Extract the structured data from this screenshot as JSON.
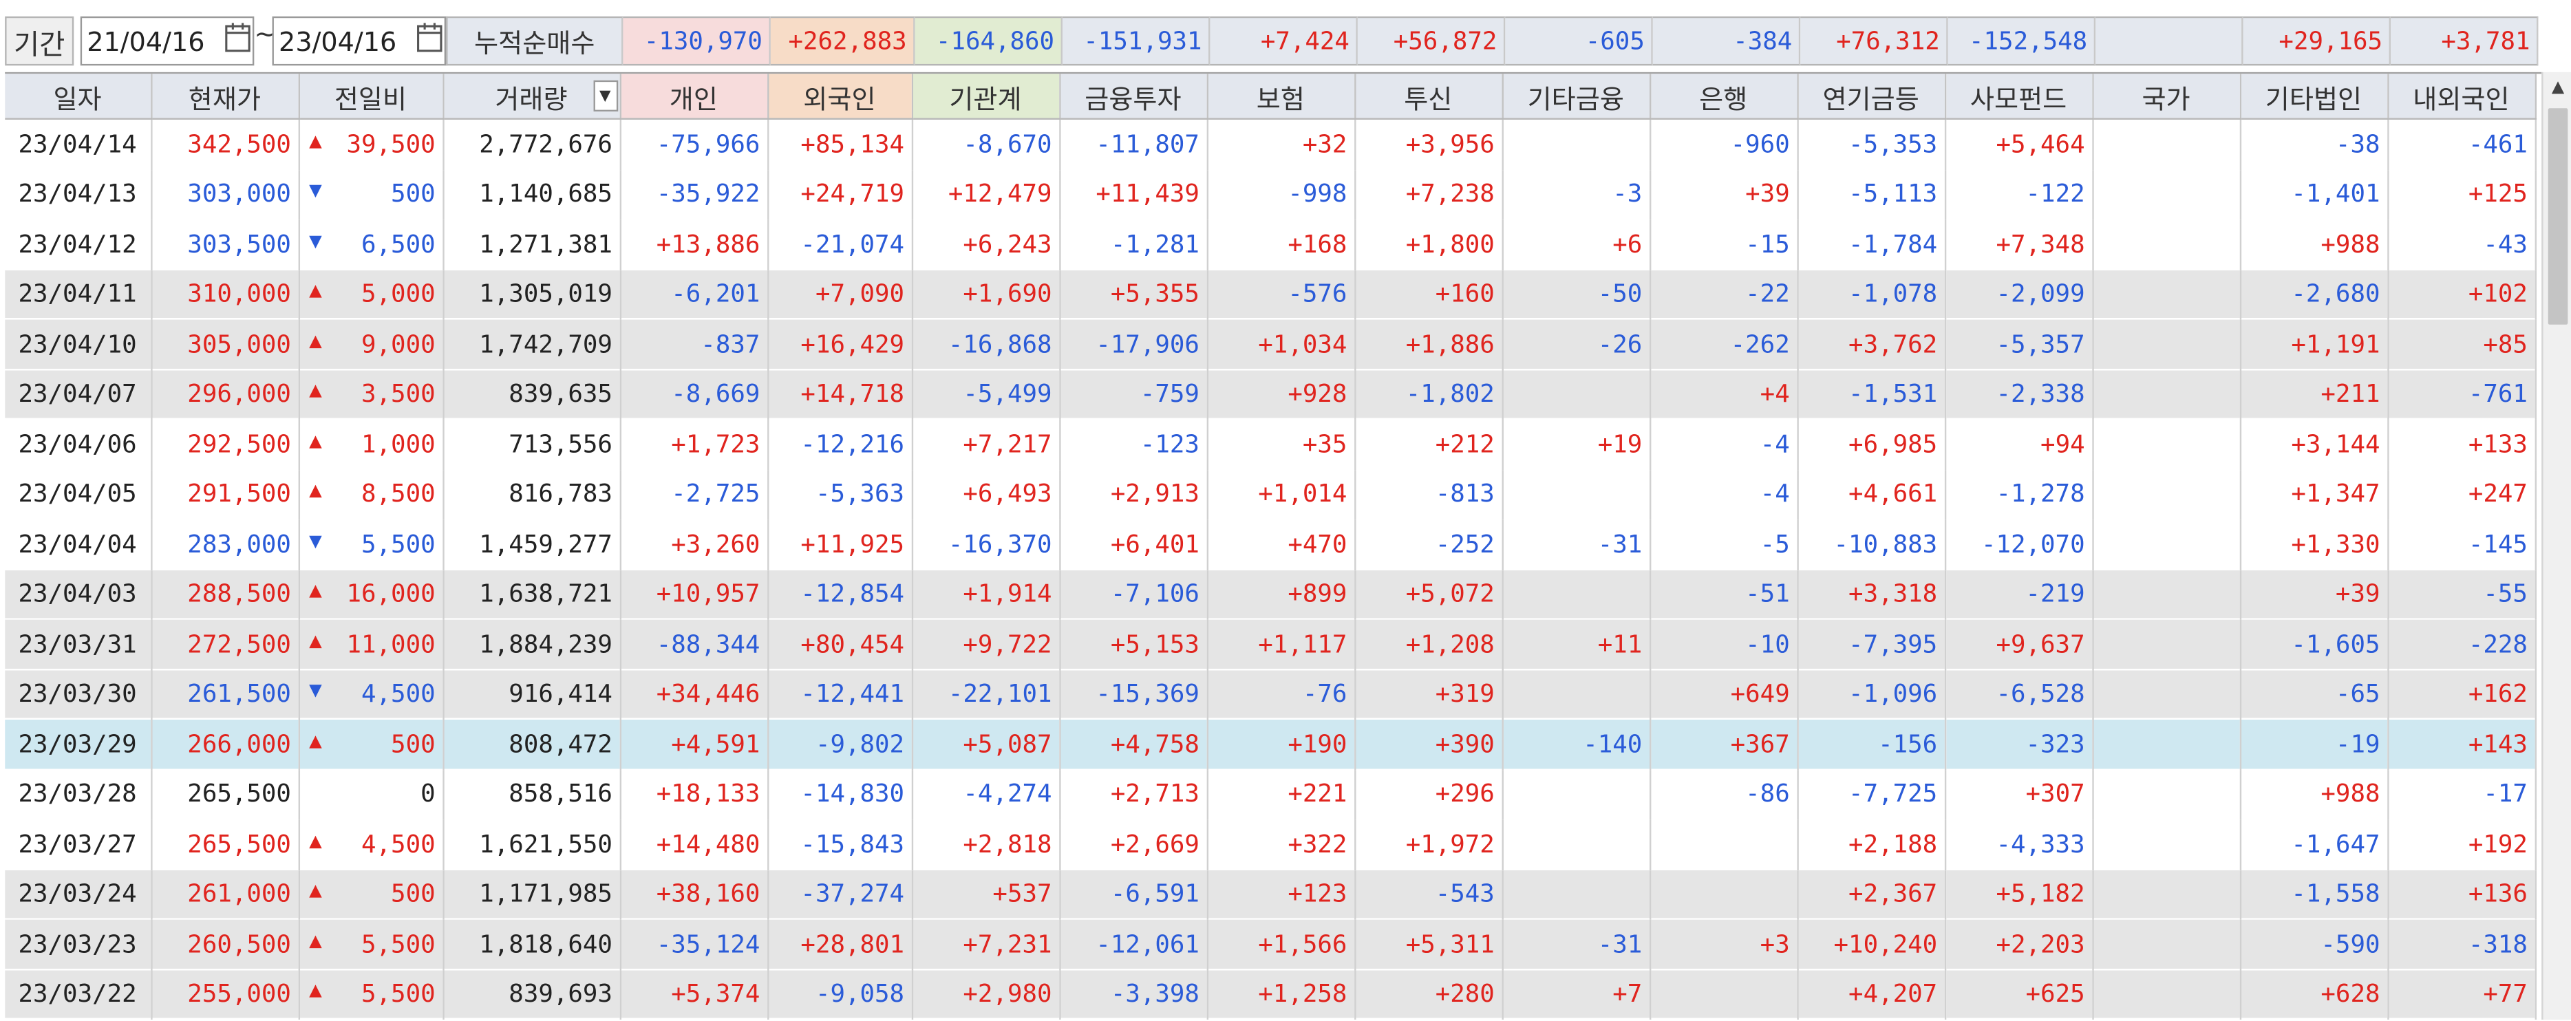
{
  "period": {
    "label": "기간",
    "from": "21/04/16",
    "tilde": "~",
    "to": "23/04/16"
  },
  "summary": {
    "label": "누적순매수",
    "cells": [
      {
        "v": "-130,970",
        "w": 90,
        "bg": "#f7dcdc",
        "c": "dn"
      },
      {
        "v": "+262,883",
        "w": 88,
        "bg": "#f7dcc7",
        "c": "up"
      },
      {
        "v": "-164,860",
        "w": 90,
        "bg": "#e1ecd2",
        "c": "dn"
      },
      {
        "v": "-151,931",
        "w": 90,
        "bg": "#e4e8ef",
        "c": "dn"
      },
      {
        "v": "+7,424",
        "w": 90,
        "bg": "#e4e8ef",
        "c": "up"
      },
      {
        "v": "+56,872",
        "w": 90,
        "bg": "#e4e8ef",
        "c": "up"
      },
      {
        "v": "-605",
        "w": 90,
        "bg": "#e4e8ef",
        "c": "dn"
      },
      {
        "v": "-384",
        "w": 90,
        "bg": "#e4e8ef",
        "c": "dn"
      },
      {
        "v": "+76,312",
        "w": 90,
        "bg": "#e4e8ef",
        "c": "up"
      },
      {
        "v": "-152,548",
        "w": 90,
        "bg": "#e4e8ef",
        "c": "dn"
      },
      {
        "v": "",
        "w": 90,
        "bg": "#e4e8ef",
        "c": "nt"
      },
      {
        "v": "+29,165",
        "w": 90,
        "bg": "#e4e8ef",
        "c": "up"
      },
      {
        "v": "+3,781",
        "w": 90,
        "bg": "#e4e8ef",
        "c": "up"
      }
    ]
  },
  "columns": [
    "일자",
    "현재가",
    "전일비",
    "거래량",
    "개인",
    "외국인",
    "기관계",
    "금융투자",
    "보험",
    "투신",
    "기타금융",
    "은행",
    "연기금등",
    "사모펀드",
    "국가",
    "기타법인",
    "내외국인"
  ],
  "colors": {
    "up": "#e0241e",
    "down": "#2a5bd8",
    "selected_row": "#cfe8f1",
    "gray_row": "#e5e5e5",
    "individual_header": "#f7dcdc",
    "foreign_header": "#f7dcc7",
    "institution_header": "#e1ecd2"
  },
  "rows": [
    {
      "d": "23/04/14",
      "p": "342,500",
      "dir": "up",
      "chg": "39,500",
      "vol": "2,772,676",
      "v": [
        "-75,966",
        "+85,134",
        "-8,670",
        "-11,807",
        "+32",
        "+3,956",
        "",
        "-960",
        "-5,353",
        "+5,464",
        "",
        "-38",
        "-461"
      ],
      "bg": "white"
    },
    {
      "d": "23/04/13",
      "p": "303,000",
      "dir": "dn",
      "chg": "500",
      "vol": "1,140,685",
      "v": [
        "-35,922",
        "+24,719",
        "+12,479",
        "+11,439",
        "-998",
        "+7,238",
        "-3",
        "+39",
        "-5,113",
        "-122",
        "",
        "-1,401",
        "+125"
      ],
      "bg": "white"
    },
    {
      "d": "23/04/12",
      "p": "303,500",
      "dir": "dn",
      "chg": "6,500",
      "vol": "1,271,381",
      "v": [
        "+13,886",
        "-21,074",
        "+6,243",
        "-1,281",
        "+168",
        "+1,800",
        "+6",
        "-15",
        "-1,784",
        "+7,348",
        "",
        "+988",
        "-43"
      ],
      "bg": "white"
    },
    {
      "d": "23/04/11",
      "p": "310,000",
      "dir": "up",
      "chg": "5,000",
      "vol": "1,305,019",
      "v": [
        "-6,201",
        "+7,090",
        "+1,690",
        "+5,355",
        "-576",
        "+160",
        "-50",
        "-22",
        "-1,078",
        "-2,099",
        "",
        "-2,680",
        "+102"
      ],
      "bg": "gray"
    },
    {
      "d": "23/04/10",
      "p": "305,000",
      "dir": "up",
      "chg": "9,000",
      "vol": "1,742,709",
      "v": [
        "-837",
        "+16,429",
        "-16,868",
        "-17,906",
        "+1,034",
        "+1,886",
        "-26",
        "-262",
        "+3,762",
        "-5,357",
        "",
        "+1,191",
        "+85"
      ],
      "bg": "gray"
    },
    {
      "d": "23/04/07",
      "p": "296,000",
      "dir": "up",
      "chg": "3,500",
      "vol": "839,635",
      "v": [
        "-8,669",
        "+14,718",
        "-5,499",
        "-759",
        "+928",
        "-1,802",
        "",
        "+4",
        "-1,531",
        "-2,338",
        "",
        "+211",
        "-761"
      ],
      "bg": "gray"
    },
    {
      "d": "23/04/06",
      "p": "292,500",
      "dir": "up",
      "chg": "1,000",
      "vol": "713,556",
      "v": [
        "+1,723",
        "-12,216",
        "+7,217",
        "-123",
        "+35",
        "+212",
        "+19",
        "-4",
        "+6,985",
        "+94",
        "",
        "+3,144",
        "+133"
      ],
      "bg": "white"
    },
    {
      "d": "23/04/05",
      "p": "291,500",
      "dir": "up",
      "chg": "8,500",
      "vol": "816,783",
      "v": [
        "-2,725",
        "-5,363",
        "+6,493",
        "+2,913",
        "+1,014",
        "-813",
        "",
        "-4",
        "+4,661",
        "-1,278",
        "",
        "+1,347",
        "+247"
      ],
      "bg": "white"
    },
    {
      "d": "23/04/04",
      "p": "283,000",
      "dir": "dn",
      "chg": "5,500",
      "vol": "1,459,277",
      "v": [
        "+3,260",
        "+11,925",
        "-16,370",
        "+6,401",
        "+470",
        "-252",
        "-31",
        "-5",
        "-10,883",
        "-12,070",
        "",
        "+1,330",
        "-145"
      ],
      "bg": "white"
    },
    {
      "d": "23/04/03",
      "p": "288,500",
      "dir": "up",
      "chg": "16,000",
      "vol": "1,638,721",
      "v": [
        "+10,957",
        "-12,854",
        "+1,914",
        "-7,106",
        "+899",
        "+5,072",
        "",
        "-51",
        "+3,318",
        "-219",
        "",
        "+39",
        "-55"
      ],
      "bg": "gray"
    },
    {
      "d": "23/03/31",
      "p": "272,500",
      "dir": "up",
      "chg": "11,000",
      "vol": "1,884,239",
      "v": [
        "-88,344",
        "+80,454",
        "+9,722",
        "+5,153",
        "+1,117",
        "+1,208",
        "+11",
        "-10",
        "-7,395",
        "+9,637",
        "",
        "-1,605",
        "-228"
      ],
      "bg": "gray"
    },
    {
      "d": "23/03/30",
      "p": "261,500",
      "dir": "dn",
      "chg": "4,500",
      "vol": "916,414",
      "v": [
        "+34,446",
        "-12,441",
        "-22,101",
        "-15,369",
        "-76",
        "+319",
        "",
        "+649",
        "-1,096",
        "-6,528",
        "",
        "-65",
        "+162"
      ],
      "bg": "gray"
    },
    {
      "d": "23/03/29",
      "p": "266,000",
      "dir": "up",
      "chg": "500",
      "vol": "808,472",
      "v": [
        "+4,591",
        "-9,802",
        "+5,087",
        "+4,758",
        "+190",
        "+390",
        "-140",
        "+367",
        "-156",
        "-323",
        "",
        "-19",
        "+143"
      ],
      "bg": "sel"
    },
    {
      "d": "23/03/28",
      "p": "265,500",
      "dir": "nt",
      "chg": "0",
      "vol": "858,516",
      "v": [
        "+18,133",
        "-14,830",
        "-4,274",
        "+2,713",
        "+221",
        "+296",
        "",
        "-86",
        "-7,725",
        "+307",
        "",
        "+988",
        "-17"
      ],
      "bg": "white"
    },
    {
      "d": "23/03/27",
      "p": "265,500",
      "dir": "up",
      "chg": "4,500",
      "vol": "1,621,550",
      "v": [
        "+14,480",
        "-15,843",
        "+2,818",
        "+2,669",
        "+322",
        "+1,972",
        "",
        "",
        "+2,188",
        "-4,333",
        "",
        "-1,647",
        "+192"
      ],
      "bg": "white"
    },
    {
      "d": "23/03/24",
      "p": "261,000",
      "dir": "up",
      "chg": "500",
      "vol": "1,171,985",
      "v": [
        "+38,160",
        "-37,274",
        "+537",
        "-6,591",
        "+123",
        "-543",
        "",
        "",
        "+2,367",
        "+5,182",
        "",
        "-1,558",
        "+136"
      ],
      "bg": "gray"
    },
    {
      "d": "23/03/23",
      "p": "260,500",
      "dir": "up",
      "chg": "5,500",
      "vol": "1,818,640",
      "v": [
        "-35,124",
        "+28,801",
        "+7,231",
        "-12,061",
        "+1,566",
        "+5,311",
        "-31",
        "+3",
        "+10,240",
        "+2,203",
        "",
        "-590",
        "-318"
      ],
      "bg": "gray"
    },
    {
      "d": "23/03/22",
      "p": "255,000",
      "dir": "up",
      "chg": "5,500",
      "vol": "839,693",
      "v": [
        "+5,374",
        "-9,058",
        "+2,980",
        "-3,398",
        "+1,258",
        "+280",
        "+7",
        "",
        "+4,207",
        "+625",
        "",
        "+628",
        "+77"
      ],
      "bg": "gray"
    }
  ]
}
